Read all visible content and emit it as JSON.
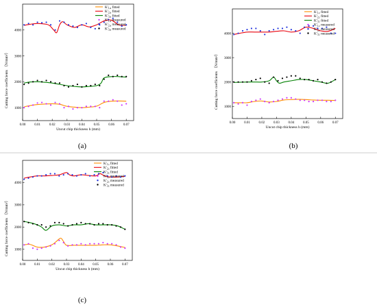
{
  "chart_data": [
    {
      "id": "a",
      "type": "line",
      "panel_label": "(a)",
      "xlabel": "Uncut chip thickness h (mm)",
      "ylabel": "Cutting force coefficients （N/mm²）",
      "xlim": [
        0,
        0.075
      ],
      "ylim": [
        500,
        5000
      ],
      "xticks": [
        "0.00",
        "0.01",
        "0.02",
        "0.03",
        "0.04",
        "0.05",
        "0.06",
        "0.07"
      ],
      "yticks": [
        "1000",
        "2000",
        "3000",
        "4000"
      ],
      "legend_position": "top-right",
      "colors": {
        "c1": "#ff8c00",
        "c2": "#e8000b",
        "c3": "#008000",
        "m1": "#cc33ff",
        "m2": "#2233dd",
        "m3": "#000000"
      },
      "legend": [
        "K'1,a fitted",
        "K'2,a fitted",
        "K'3,a fitted",
        "K'1,a measured",
        "K'2,a measured",
        "K'3,a measured"
      ],
      "series": [
        {
          "name": "K'1,a fitted",
          "kind": "line",
          "color": "#ff8c00",
          "x": [
            0.001,
            0.005,
            0.01,
            0.015,
            0.02,
            0.025,
            0.03,
            0.035,
            0.04,
            0.045,
            0.05,
            0.055,
            0.06,
            0.065,
            0.07
          ],
          "y": [
            1030,
            1080,
            1120,
            1140,
            1150,
            1130,
            1050,
            1020,
            1000,
            1020,
            1060,
            1200,
            1250,
            1260,
            1250
          ]
        },
        {
          "name": "K'2,a fitted",
          "kind": "line",
          "color": "#e8000b",
          "x": [
            0.001,
            0.005,
            0.01,
            0.015,
            0.018,
            0.021,
            0.023,
            0.025,
            0.027,
            0.03,
            0.035,
            0.04,
            0.045,
            0.05,
            0.055,
            0.06,
            0.065,
            0.07
          ],
          "y": [
            4180,
            4220,
            4250,
            4230,
            4180,
            4000,
            3900,
            4200,
            4320,
            4200,
            4100,
            4200,
            4120,
            4200,
            4350,
            4380,
            4200,
            4180
          ]
        },
        {
          "name": "K'3,a fitted",
          "kind": "line",
          "color": "#008000",
          "x": [
            0.001,
            0.005,
            0.01,
            0.015,
            0.02,
            0.025,
            0.03,
            0.035,
            0.04,
            0.045,
            0.05,
            0.053,
            0.055,
            0.06,
            0.065,
            0.07
          ],
          "y": [
            1950,
            1990,
            2000,
            1980,
            1950,
            1900,
            1850,
            1820,
            1800,
            1820,
            1850,
            1950,
            2150,
            2200,
            2200,
            2180
          ]
        },
        {
          "name": "K'1,a measured",
          "kind": "scatter",
          "color": "#cc33ff",
          "x": [
            0.001,
            0.004,
            0.007,
            0.01,
            0.013,
            0.016,
            0.019,
            0.022,
            0.025,
            0.028,
            0.031,
            0.034,
            0.037,
            0.04,
            0.043,
            0.046,
            0.049,
            0.052,
            0.055,
            0.058,
            0.061,
            0.064,
            0.067,
            0.07
          ],
          "y": [
            1000,
            1050,
            1100,
            1180,
            1200,
            1150,
            1100,
            1200,
            1150,
            1000,
            1050,
            950,
            1000,
            1000,
            1050,
            1050,
            1050,
            1000,
            1250,
            1250,
            1300,
            1250,
            1100,
            1150
          ]
        },
        {
          "name": "K'2,a measured",
          "kind": "scatter",
          "color": "#2233dd",
          "x": [
            0.001,
            0.004,
            0.007,
            0.01,
            0.013,
            0.016,
            0.019,
            0.022,
            0.025,
            0.028,
            0.031,
            0.034,
            0.037,
            0.04,
            0.043,
            0.046,
            0.049,
            0.052,
            0.055,
            0.058,
            0.061,
            0.064,
            0.067,
            0.07
          ],
          "y": [
            4200,
            4250,
            4200,
            4300,
            4280,
            4300,
            4200,
            4000,
            4350,
            4300,
            4200,
            4150,
            4100,
            4200,
            4250,
            4100,
            4050,
            4200,
            4300,
            4400,
            4450,
            4300,
            4150,
            4200
          ]
        },
        {
          "name": "K'3,a measured",
          "kind": "scatter",
          "color": "#000000",
          "x": [
            0.001,
            0.004,
            0.007,
            0.01,
            0.013,
            0.016,
            0.019,
            0.022,
            0.025,
            0.028,
            0.031,
            0.034,
            0.037,
            0.04,
            0.043,
            0.046,
            0.049,
            0.052,
            0.055,
            0.058,
            0.061,
            0.064,
            0.067,
            0.07
          ],
          "y": [
            1900,
            1950,
            2000,
            2050,
            2000,
            2050,
            2000,
            1950,
            1950,
            1850,
            1800,
            1850,
            1900,
            1800,
            1850,
            1850,
            1900,
            1850,
            2100,
            2250,
            2200,
            2250,
            2200,
            2200
          ]
        }
      ]
    },
    {
      "id": "b",
      "type": "line",
      "panel_label": "(b)",
      "xlabel": "Uncut chip thickness h (mm)",
      "ylabel": "Cutting force coefficients （N/mm²）",
      "xlim": [
        0,
        0.075
      ],
      "ylim": [
        500,
        5000
      ],
      "xticks": [
        "0.00",
        "0.01",
        "0.02",
        "0.03",
        "0.04",
        "0.05",
        "0.06",
        "0.07"
      ],
      "yticks": [
        "1000",
        "2000",
        "3000",
        "4000"
      ],
      "legend_position": "top-right",
      "colors": {
        "c1": "#ff8c00",
        "c2": "#e8000b",
        "c3": "#008000",
        "m1": "#cc33ff",
        "m2": "#2233dd",
        "m3": "#000000"
      },
      "legend": [
        "K'1,r fitted",
        "K'2,r fitted",
        "K'3,r fitted",
        "K'1,r measured",
        "K'2,r measured",
        "K'3,r measured"
      ],
      "series": [
        {
          "name": "K'1,r fitted",
          "kind": "line",
          "color": "#ff8c00",
          "x": [
            0.001,
            0.005,
            0.01,
            0.015,
            0.02,
            0.025,
            0.03,
            0.035,
            0.04,
            0.045,
            0.05,
            0.055,
            0.06,
            0.065,
            0.07
          ],
          "y": [
            1150,
            1150,
            1150,
            1200,
            1220,
            1180,
            1200,
            1260,
            1280,
            1290,
            1280,
            1260,
            1250,
            1250,
            1240
          ]
        },
        {
          "name": "K'2,r fitted",
          "kind": "line",
          "color": "#e8000b",
          "x": [
            0.001,
            0.005,
            0.01,
            0.015,
            0.02,
            0.025,
            0.03,
            0.035,
            0.04,
            0.045,
            0.05,
            0.055,
            0.06,
            0.065,
            0.07
          ],
          "y": [
            3950,
            4000,
            4050,
            4050,
            4050,
            4050,
            4080,
            4100,
            4050,
            4100,
            4250,
            4200,
            4100,
            4080,
            4200
          ]
        },
        {
          "name": "K'3,r fitted",
          "kind": "line",
          "color": "#008000",
          "x": [
            0.001,
            0.005,
            0.01,
            0.015,
            0.02,
            0.025,
            0.028,
            0.03,
            0.032,
            0.035,
            0.04,
            0.045,
            0.05,
            0.055,
            0.06,
            0.065,
            0.07
          ],
          "y": [
            1980,
            1990,
            2000,
            2000,
            2000,
            2050,
            2200,
            2050,
            1950,
            2000,
            2050,
            2100,
            2100,
            2050,
            2000,
            1950,
            2100
          ]
        },
        {
          "name": "K'1,r measured",
          "kind": "scatter",
          "color": "#cc33ff",
          "x": [
            0.001,
            0.004,
            0.007,
            0.01,
            0.013,
            0.016,
            0.019,
            0.022,
            0.025,
            0.028,
            0.031,
            0.034,
            0.037,
            0.04,
            0.043,
            0.046,
            0.049,
            0.052,
            0.055,
            0.058,
            0.061,
            0.064,
            0.067,
            0.07
          ],
          "y": [
            1150,
            1100,
            1150,
            1050,
            1200,
            1250,
            1300,
            1200,
            1150,
            1200,
            1250,
            1300,
            1350,
            1350,
            1300,
            1250,
            1250,
            1200,
            1200,
            1250,
            1250,
            1200,
            1200,
            1250
          ]
        },
        {
          "name": "K'2,r measured",
          "kind": "scatter",
          "color": "#2233dd",
          "x": [
            0.001,
            0.004,
            0.007,
            0.01,
            0.013,
            0.016,
            0.019,
            0.022,
            0.025,
            0.028,
            0.031,
            0.034,
            0.037,
            0.04,
            0.043,
            0.046,
            0.049,
            0.052,
            0.055,
            0.058,
            0.061,
            0.064,
            0.067,
            0.07
          ],
          "y": [
            3950,
            4000,
            4100,
            4150,
            4200,
            4200,
            4100,
            3950,
            4100,
            4150,
            4200,
            4200,
            4250,
            4150,
            4100,
            4000,
            4250,
            4300,
            4300,
            4200,
            4200,
            4250,
            4000,
            4000
          ]
        },
        {
          "name": "K'3,r measured",
          "kind": "scatter",
          "color": "#000000",
          "x": [
            0.001,
            0.004,
            0.007,
            0.01,
            0.013,
            0.016,
            0.019,
            0.022,
            0.025,
            0.028,
            0.031,
            0.034,
            0.037,
            0.04,
            0.043,
            0.046,
            0.049,
            0.052,
            0.055,
            0.058,
            0.061,
            0.064,
            0.067,
            0.07
          ],
          "y": [
            2000,
            2000,
            2000,
            2000,
            2050,
            2100,
            2150,
            2000,
            1950,
            2200,
            2050,
            2150,
            2200,
            2250,
            2250,
            2150,
            2100,
            2100,
            2050,
            2100,
            2000,
            1950,
            2000,
            2100
          ]
        }
      ]
    },
    {
      "id": "c",
      "type": "line",
      "panel_label": "(c)",
      "xlabel": "Uncut chip thickness h (mm)",
      "ylabel": "Cutting force coefficients （N/mm²）",
      "xlim": [
        0,
        0.075
      ],
      "ylim": [
        500,
        5000
      ],
      "xticks": [
        "0.00",
        "0.01",
        "0.02",
        "0.03",
        "0.04",
        "0.05",
        "0.06",
        "0.07"
      ],
      "yticks": [
        "1000",
        "2000",
        "3000",
        "4000"
      ],
      "legend_position": "top-right",
      "colors": {
        "c1": "#ff8c00",
        "c2": "#e8000b",
        "c3": "#008000",
        "m1": "#cc33ff",
        "m2": "#2233dd",
        "m3": "#000000"
      },
      "legend": [
        "K'1,t fitted",
        "K'2,t fitted",
        "K'3,t fitted",
        "K'1,t measured",
        "K'2,t measured",
        "K'3,t measured"
      ],
      "series": [
        {
          "name": "K'1,t fitted",
          "kind": "line",
          "color": "#ff8c00",
          "x": [
            0.001,
            0.005,
            0.01,
            0.015,
            0.02,
            0.023,
            0.026,
            0.028,
            0.03,
            0.035,
            0.04,
            0.045,
            0.05,
            0.055,
            0.06,
            0.065,
            0.07
          ],
          "y": [
            1200,
            1220,
            1100,
            1100,
            1200,
            1350,
            1500,
            1350,
            1180,
            1180,
            1180,
            1180,
            1180,
            1200,
            1200,
            1150,
            1080
          ]
        },
        {
          "name": "K'2,t fitted",
          "kind": "line",
          "color": "#e8000b",
          "x": [
            0.001,
            0.005,
            0.01,
            0.015,
            0.02,
            0.025,
            0.03,
            0.032,
            0.035,
            0.04,
            0.045,
            0.05,
            0.053,
            0.056,
            0.06,
            0.065,
            0.07
          ],
          "y": [
            4200,
            4250,
            4300,
            4300,
            4320,
            4350,
            4450,
            4350,
            4300,
            4350,
            4320,
            4300,
            4400,
            4300,
            4250,
            4250,
            4280
          ]
        },
        {
          "name": "K'3,t fitted",
          "kind": "line",
          "color": "#008000",
          "x": [
            0.001,
            0.005,
            0.01,
            0.013,
            0.016,
            0.02,
            0.025,
            0.03,
            0.035,
            0.04,
            0.045,
            0.05,
            0.055,
            0.06,
            0.065,
            0.07
          ],
          "y": [
            2250,
            2200,
            2100,
            2000,
            1850,
            2050,
            2100,
            2050,
            2100,
            2100,
            2150,
            2100,
            2100,
            2100,
            2050,
            1900
          ]
        },
        {
          "name": "K'1,t measured",
          "kind": "scatter",
          "color": "#cc33ff",
          "x": [
            0.001,
            0.004,
            0.007,
            0.01,
            0.013,
            0.016,
            0.019,
            0.022,
            0.025,
            0.028,
            0.031,
            0.034,
            0.037,
            0.04,
            0.043,
            0.046,
            0.049,
            0.052,
            0.055,
            0.058,
            0.061,
            0.064,
            0.067,
            0.07
          ],
          "y": [
            1200,
            1250,
            1050,
            1000,
            1050,
            1100,
            1150,
            1250,
            1400,
            1300,
            1150,
            1200,
            1200,
            1250,
            1200,
            1250,
            1250,
            1250,
            1300,
            1250,
            1250,
            1200,
            1100,
            1050
          ]
        },
        {
          "name": "K'2,t measured",
          "kind": "scatter",
          "color": "#2233dd",
          "x": [
            0.001,
            0.004,
            0.007,
            0.01,
            0.013,
            0.016,
            0.019,
            0.022,
            0.025,
            0.028,
            0.031,
            0.034,
            0.037,
            0.04,
            0.043,
            0.046,
            0.049,
            0.052,
            0.055,
            0.058,
            0.061,
            0.064,
            0.067,
            0.07
          ],
          "y": [
            4150,
            4200,
            4250,
            4300,
            4300,
            4350,
            4400,
            4400,
            4300,
            4350,
            4400,
            4350,
            4300,
            4350,
            4400,
            4300,
            4350,
            4400,
            4450,
            4300,
            4250,
            4300,
            4250,
            4300
          ]
        },
        {
          "name": "K'3,t measured",
          "kind": "scatter",
          "color": "#000000",
          "x": [
            0.001,
            0.004,
            0.007,
            0.01,
            0.013,
            0.016,
            0.019,
            0.022,
            0.025,
            0.028,
            0.031,
            0.034,
            0.037,
            0.04,
            0.043,
            0.046,
            0.049,
            0.052,
            0.055,
            0.058,
            0.061,
            0.064,
            0.067,
            0.07
          ],
          "y": [
            2250,
            2200,
            2150,
            2100,
            2100,
            2000,
            2050,
            2200,
            2200,
            2150,
            2050,
            2100,
            2150,
            2200,
            2150,
            2150,
            2100,
            2150,
            2150,
            2100,
            2100,
            2050,
            2000,
            1900
          ]
        }
      ]
    }
  ]
}
